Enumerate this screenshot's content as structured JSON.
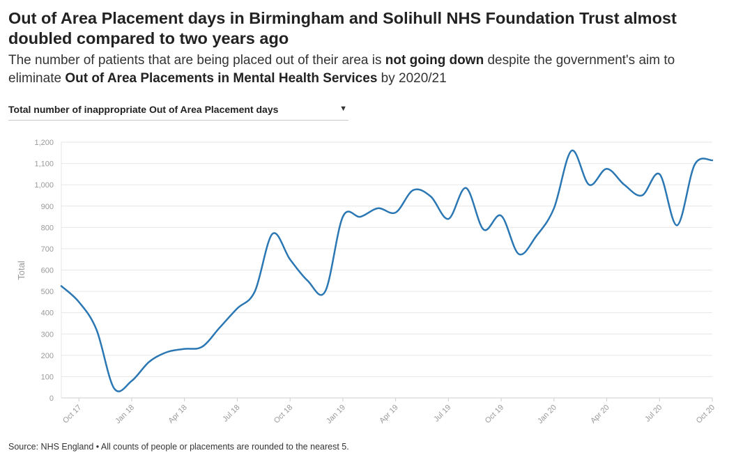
{
  "title": "Out of Area Placement days in Birmingham and Solihull NHS Foundation Trust almost doubled compared to two years ago",
  "subtitle": {
    "part1": "The number of patients that are being placed out of their area is ",
    "bold1": "not going down",
    "part2": " despite the government's aim to eliminate ",
    "bold2": "Out of Area Placements in Mental Health Services",
    "part3": " by 2020/21"
  },
  "selector": {
    "selected_label": "Total number of inappropriate Out of Area Placement days"
  },
  "source": "Source: NHS England • All counts of people or placements are rounded to the nearest 5.",
  "colors": {
    "line": "#2a77b4",
    "grid": "#e6e6e6",
    "tick_text": "#999999"
  },
  "icons": {
    "selector_caret": "caret-down-icon"
  },
  "chart_data": {
    "type": "line",
    "title": "",
    "xlabel": "",
    "ylabel": "Total",
    "ylim": [
      0,
      1200
    ],
    "yticks": [
      0,
      100,
      200,
      300,
      400,
      500,
      600,
      700,
      800,
      900,
      1000,
      1100,
      1200
    ],
    "ytick_labels": [
      "0",
      "100",
      "200",
      "300",
      "400",
      "500",
      "600",
      "700",
      "800",
      "900",
      "1,000",
      "1,100",
      "1,200"
    ],
    "xticks": [
      "Oct 17",
      "Jan 18",
      "Apr 18",
      "Jul 18",
      "Oct 18",
      "Jan 19",
      "Apr 19",
      "Jul 19",
      "Oct 19",
      "Jan 20",
      "Apr 20",
      "Jul 20",
      "Oct 20"
    ],
    "grid": true,
    "legend": "none",
    "x": [
      "Sep 17",
      "Oct 17",
      "Nov 17",
      "Dec 17",
      "Jan 18",
      "Feb 18",
      "Mar 18",
      "Apr 18",
      "May 18",
      "Jun 18",
      "Jul 18",
      "Aug 18",
      "Sep 18",
      "Oct 18",
      "Nov 18",
      "Dec 18",
      "Jan 19",
      "Feb 19",
      "Mar 19",
      "Apr 19",
      "May 19",
      "Jun 19",
      "Jul 19",
      "Aug 19",
      "Sep 19",
      "Oct 19",
      "Nov 19",
      "Dec 19",
      "Jan 20",
      "Feb 20",
      "Mar 20",
      "Apr 20",
      "May 20",
      "Jun 20",
      "Jul 20",
      "Aug 20",
      "Sep 20",
      "Oct 20"
    ],
    "series": [
      {
        "name": "",
        "values": [
          525,
          450,
          320,
          45,
          80,
          170,
          215,
          230,
          240,
          330,
          420,
          500,
          770,
          650,
          550,
          500,
          850,
          850,
          890,
          870,
          975,
          945,
          840,
          985,
          790,
          855,
          675,
          760,
          890,
          1160,
          1000,
          1075,
          1000,
          950,
          1050,
          810,
          1095,
          1115
        ]
      }
    ]
  }
}
